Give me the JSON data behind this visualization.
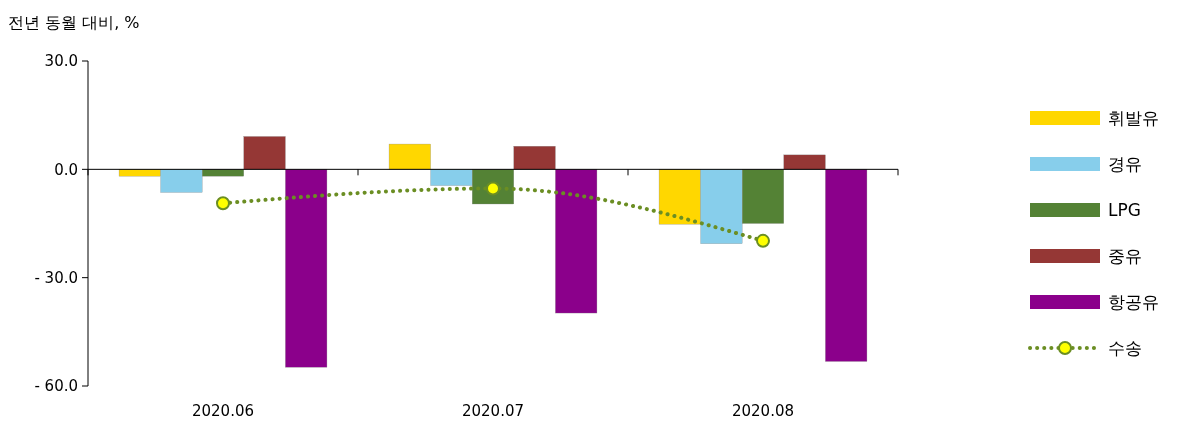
{
  "chart_data": {
    "type": "bar",
    "ylabel": "전년 동월 대비, %",
    "categories": [
      "2020.06",
      "2020.07",
      "2020.08"
    ],
    "series": [
      {
        "name": "휘발유",
        "color": "#ffd700",
        "values": [
          -1.9,
          7.0,
          -15.2
        ]
      },
      {
        "name": "경유",
        "color": "#87ceeb",
        "values": [
          -6.4,
          -4.5,
          -20.6
        ]
      },
      {
        "name": "LPG",
        "color": "#548235",
        "values": [
          -1.9,
          -9.6,
          -15.0
        ]
      },
      {
        "name": "중유",
        "color": "#953735",
        "values": [
          9.1,
          6.4,
          4.0
        ]
      },
      {
        "name": "항공유",
        "color": "#8b008b",
        "values": [
          -54.8,
          -39.8,
          -53.2
        ]
      },
      {
        "name": "수송",
        "type": "line",
        "color": "#6b8e23",
        "marker": "circle",
        "line_style": "dotted",
        "values": [
          -9.4,
          -5.3,
          -19.8
        ]
      }
    ],
    "ylim": [
      -60,
      30
    ],
    "yticks": [
      {
        "value": 30,
        "label": "30.0"
      },
      {
        "value": 0,
        "label": "0.0"
      },
      {
        "value": -30,
        "label": "- 30.0"
      },
      {
        "value": -60,
        "label": "- 60.0"
      }
    ],
    "legend": "right"
  }
}
